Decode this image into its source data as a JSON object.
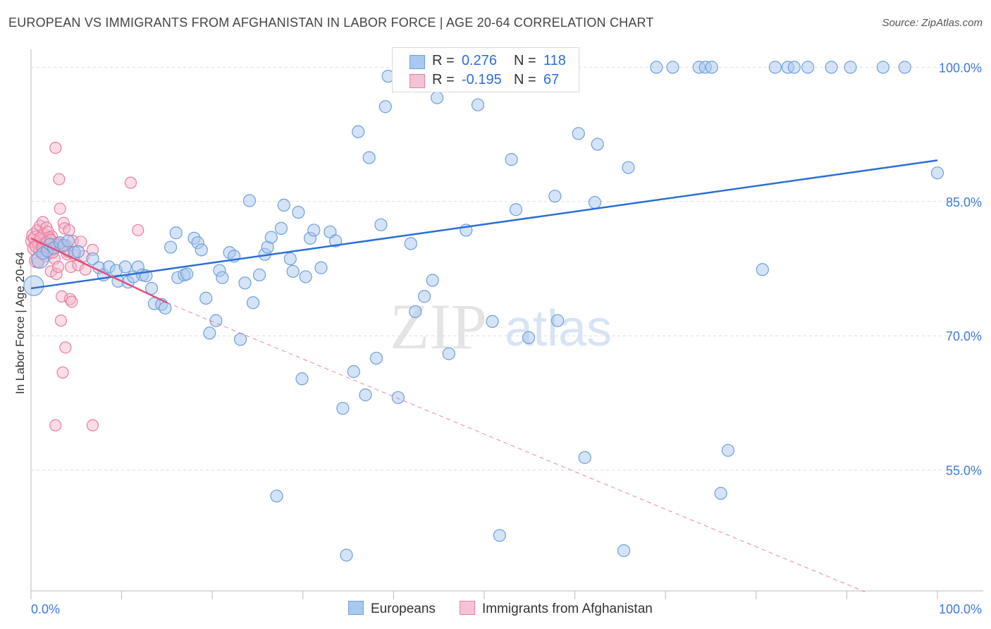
{
  "title": "EUROPEAN VS IMMIGRANTS FROM AFGHANISTAN IN LABOR FORCE | AGE 20-64 CORRELATION CHART",
  "source": "Source: ZipAtlas.com",
  "watermark": "ZIPatlas",
  "legend": {
    "rows": [
      {
        "r_label": "R =",
        "r_value": "0.276",
        "n_label": "N =",
        "n_value": "118"
      },
      {
        "r_label": "R =",
        "r_value": "-0.195",
        "n_label": "N =",
        "n_value": "67"
      }
    ]
  },
  "bottom_legend": {
    "europeans": "Europeans",
    "afghanistan": "Immigrants from Afghanistan"
  },
  "colors": {
    "blue_fill": "#a9c8f0",
    "blue_stroke": "#6f9fd8",
    "blue_line": "#2a6fd6",
    "pink_fill": "#f5b3c8",
    "pink_stroke": "#e87ea3",
    "pink_line": "#e0507e",
    "axis_text": "#3d7ad6",
    "grid": "#dddddd"
  },
  "chart_data": {
    "type": "scatter",
    "title": "EUROPEAN VS IMMIGRANTS FROM AFGHANISTAN IN LABOR FORCE | AGE 20-64 CORRELATION CHART",
    "xlabel": "",
    "ylabel": "In Labor Force | Age 20-64",
    "xlim": [
      0,
      100
    ],
    "ylim": [
      41.5,
      102
    ],
    "x_tick_labels": [
      "0.0%",
      "100.0%"
    ],
    "y_ticks": [
      55,
      70,
      85,
      100
    ],
    "y_tick_labels": [
      "55.0%",
      "70.0%",
      "85.0%",
      "100.0%"
    ],
    "series": [
      {
        "name": "Europeans",
        "R": 0.276,
        "N": 118,
        "trend": {
          "x": [
            0,
            100
          ],
          "y": [
            75.3,
            89.6
          ],
          "style": "solid"
        },
        "points": [
          [
            0.3,
            75.6
          ],
          [
            1.0,
            78.5
          ],
          [
            1.3,
            79.2
          ],
          [
            1.8,
            79.5
          ],
          [
            2.1,
            80.2
          ],
          [
            2.5,
            79.8
          ],
          [
            3.2,
            80.4
          ],
          [
            3.6,
            80.1
          ],
          [
            4.1,
            80.6
          ],
          [
            4.8,
            79.3
          ],
          [
            5.2,
            79.4
          ],
          [
            6.8,
            78.6
          ],
          [
            7.5,
            77.6
          ],
          [
            8.0,
            76.8
          ],
          [
            8.6,
            77.7
          ],
          [
            9.4,
            77.3
          ],
          [
            9.6,
            76.1
          ],
          [
            10.4,
            77.7
          ],
          [
            10.7,
            76.0
          ],
          [
            11.3,
            76.6
          ],
          [
            11.8,
            77.7
          ],
          [
            12.3,
            76.8
          ],
          [
            12.7,
            76.7
          ],
          [
            13.3,
            75.3
          ],
          [
            13.6,
            73.6
          ],
          [
            14.4,
            73.5
          ],
          [
            14.8,
            73.1
          ],
          [
            15.4,
            79.9
          ],
          [
            16.0,
            81.5
          ],
          [
            16.2,
            76.5
          ],
          [
            16.9,
            76.8
          ],
          [
            17.2,
            76.9
          ],
          [
            18.0,
            80.9
          ],
          [
            18.4,
            80.4
          ],
          [
            18.8,
            79.6
          ],
          [
            19.3,
            74.2
          ],
          [
            19.7,
            70.3
          ],
          [
            20.4,
            71.7
          ],
          [
            20.8,
            77.3
          ],
          [
            21.1,
            76.5
          ],
          [
            21.9,
            79.3
          ],
          [
            22.4,
            78.9
          ],
          [
            23.1,
            69.6
          ],
          [
            23.6,
            75.9
          ],
          [
            24.1,
            85.1
          ],
          [
            24.5,
            73.7
          ],
          [
            25.2,
            76.8
          ],
          [
            25.8,
            79.1
          ],
          [
            26.1,
            79.9
          ],
          [
            26.5,
            81.0
          ],
          [
            27.1,
            52.1
          ],
          [
            27.6,
            82.0
          ],
          [
            27.9,
            84.6
          ],
          [
            28.6,
            78.6
          ],
          [
            28.9,
            77.2
          ],
          [
            29.5,
            83.8
          ],
          [
            29.9,
            65.2
          ],
          [
            30.3,
            76.6
          ],
          [
            30.8,
            80.9
          ],
          [
            31.2,
            81.8
          ],
          [
            32.0,
            77.6
          ],
          [
            33.0,
            81.6
          ],
          [
            33.6,
            80.6
          ],
          [
            34.4,
            61.9
          ],
          [
            34.8,
            45.5
          ],
          [
            35.6,
            66.0
          ],
          [
            36.1,
            92.8
          ],
          [
            36.9,
            63.4
          ],
          [
            37.3,
            89.9
          ],
          [
            38.1,
            67.5
          ],
          [
            38.6,
            82.4
          ],
          [
            39.1,
            95.6
          ],
          [
            39.4,
            99.0
          ],
          [
            40.5,
            63.1
          ],
          [
            41.2,
            100.0
          ],
          [
            41.9,
            80.3
          ],
          [
            42.4,
            72.7
          ],
          [
            43.4,
            74.4
          ],
          [
            44.3,
            76.2
          ],
          [
            44.8,
            96.6
          ],
          [
            45.9,
            100.0
          ],
          [
            46.1,
            68.0
          ],
          [
            47.5,
            100.0
          ],
          [
            48.0,
            81.8
          ],
          [
            49.3,
            95.8
          ],
          [
            50.1,
            100.0
          ],
          [
            50.9,
            71.6
          ],
          [
            51.7,
            47.7
          ],
          [
            53.0,
            89.7
          ],
          [
            53.5,
            84.1
          ],
          [
            54.4,
            100.0
          ],
          [
            54.9,
            69.8
          ],
          [
            55.7,
            100.0
          ],
          [
            57.8,
            85.6
          ],
          [
            58.1,
            71.7
          ],
          [
            60.4,
            92.6
          ],
          [
            61.1,
            56.4
          ],
          [
            62.2,
            84.9
          ],
          [
            62.5,
            91.4
          ],
          [
            65.4,
            46.0
          ],
          [
            65.9,
            88.8
          ],
          [
            69.0,
            100.0
          ],
          [
            70.8,
            100.0
          ],
          [
            73.7,
            100.0
          ],
          [
            74.4,
            100.0
          ],
          [
            75.1,
            100.0
          ],
          [
            76.1,
            52.4
          ],
          [
            76.9,
            57.2
          ],
          [
            80.7,
            77.4
          ],
          [
            82.1,
            100.0
          ],
          [
            83.5,
            100.0
          ],
          [
            84.2,
            100.0
          ],
          [
            85.7,
            100.0
          ],
          [
            88.3,
            100.0
          ],
          [
            90.4,
            100.0
          ],
          [
            94.0,
            100.0
          ],
          [
            96.4,
            100.0
          ],
          [
            100.0,
            88.2
          ]
        ]
      },
      {
        "name": "Immigrants from Afghanistan",
        "R": -0.195,
        "N": 67,
        "trend": {
          "x": [
            0,
            15
          ],
          "y": [
            80.9,
            73.7
          ],
          "style": "solid"
        },
        "trend_extension": {
          "x": [
            15,
            92
          ],
          "y": [
            73.7,
            41.4
          ],
          "style": "dashed"
        },
        "points": [
          [
            0.2,
            80.6
          ],
          [
            0.3,
            81.2
          ],
          [
            0.4,
            79.8
          ],
          [
            0.5,
            80.9
          ],
          [
            0.6,
            78.4
          ],
          [
            0.7,
            81.8
          ],
          [
            0.8,
            80.2
          ],
          [
            0.9,
            79.5
          ],
          [
            1.0,
            82.3
          ],
          [
            1.1,
            80.7
          ],
          [
            1.2,
            79.9
          ],
          [
            1.3,
            82.7
          ],
          [
            1.4,
            81.4
          ],
          [
            1.5,
            80.0
          ],
          [
            1.6,
            78.9
          ],
          [
            1.7,
            82.1
          ],
          [
            1.8,
            80.5
          ],
          [
            1.9,
            81.6
          ],
          [
            2.0,
            79.2
          ],
          [
            2.1,
            80.8
          ],
          [
            2.2,
            77.2
          ],
          [
            2.3,
            81.1
          ],
          [
            2.4,
            79.6
          ],
          [
            2.5,
            80.3
          ],
          [
            2.6,
            78.6
          ],
          [
            2.7,
            91.0
          ],
          [
            2.8,
            76.9
          ],
          [
            2.9,
            80.4
          ],
          [
            3.0,
            77.7
          ],
          [
            3.1,
            87.5
          ],
          [
            3.2,
            84.2
          ],
          [
            3.3,
            71.7
          ],
          [
            3.4,
            74.4
          ],
          [
            3.5,
            65.9
          ],
          [
            3.6,
            82.6
          ],
          [
            3.7,
            82.0
          ],
          [
            3.8,
            68.7
          ],
          [
            3.9,
            80.1
          ],
          [
            4.0,
            79.1
          ],
          [
            4.1,
            79.4
          ],
          [
            4.2,
            81.8
          ],
          [
            4.3,
            74.1
          ],
          [
            4.4,
            77.7
          ],
          [
            4.5,
            73.8
          ],
          [
            4.6,
            80.6
          ],
          [
            4.8,
            79.0
          ],
          [
            5.2,
            77.9
          ],
          [
            5.5,
            80.5
          ],
          [
            5.8,
            78.9
          ],
          [
            6.0,
            77.4
          ],
          [
            6.8,
            79.6
          ],
          [
            2.7,
            60.0
          ],
          [
            6.8,
            60.0
          ],
          [
            11.0,
            87.1
          ],
          [
            11.8,
            81.8
          ],
          [
            0.8,
            78.2
          ],
          [
            1.5,
            80.3
          ],
          [
            2.0,
            81.0
          ],
          [
            2.4,
            79.3
          ],
          [
            0.5,
            80.0
          ],
          [
            1.0,
            80.9
          ],
          [
            1.3,
            79.9
          ],
          [
            1.7,
            80.4
          ],
          [
            2.2,
            80.7
          ],
          [
            2.6,
            79.8
          ],
          [
            3.0,
            80.2
          ],
          [
            3.4,
            79.9
          ]
        ]
      }
    ]
  }
}
